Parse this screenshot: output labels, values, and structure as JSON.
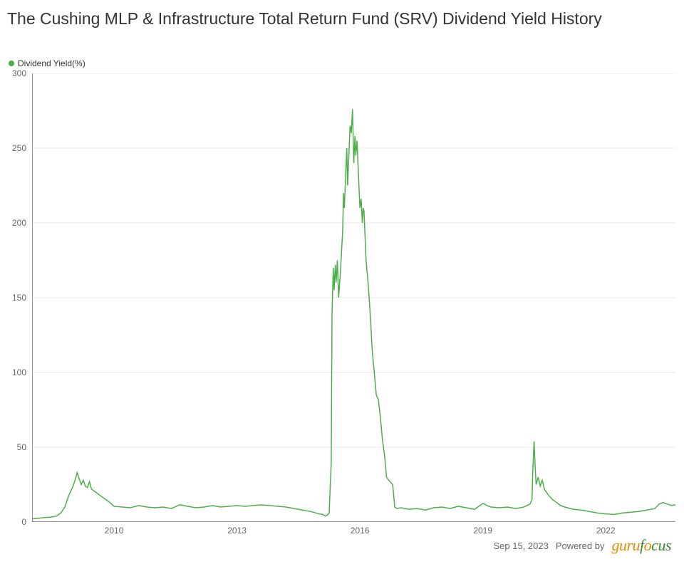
{
  "chart": {
    "type": "line",
    "title": "The Cushing MLP & Infrastructure Total Return Fund (SRV) Dividend Yield History",
    "legend_label": "Dividend Yield(%)",
    "series_color": "#4daf4a",
    "background_color": "#ffffff",
    "grid_color": "#e9e9e9",
    "axis_color": "#333333",
    "label_color": "#666666",
    "title_color": "#333333",
    "title_fontsize": 23,
    "label_fontsize": 12,
    "line_width": 1.5,
    "x_domain": [
      2008,
      2023.7
    ],
    "y_domain": [
      0,
      300
    ],
    "y_ticks": [
      0,
      50,
      100,
      150,
      200,
      250,
      300
    ],
    "x_ticks": [
      2010,
      2013,
      2016,
      2019,
      2022
    ],
    "data": [
      [
        2008.0,
        2.0
      ],
      [
        2008.15,
        2.5
      ],
      [
        2008.3,
        3.0
      ],
      [
        2008.45,
        3.2
      ],
      [
        2008.6,
        4.0
      ],
      [
        2008.7,
        6.0
      ],
      [
        2008.8,
        10.0
      ],
      [
        2008.9,
        18.0
      ],
      [
        2009.0,
        24.0
      ],
      [
        2009.05,
        28.0
      ],
      [
        2009.1,
        33.0
      ],
      [
        2009.15,
        29.0
      ],
      [
        2009.2,
        25.0
      ],
      [
        2009.25,
        28.0
      ],
      [
        2009.3,
        24.0
      ],
      [
        2009.35,
        23.0
      ],
      [
        2009.4,
        27.0
      ],
      [
        2009.45,
        22.0
      ],
      [
        2009.5,
        21.0
      ],
      [
        2009.6,
        19.0
      ],
      [
        2009.7,
        17.0
      ],
      [
        2009.8,
        15.0
      ],
      [
        2009.9,
        13.0
      ],
      [
        2010.0,
        10.5
      ],
      [
        2010.2,
        10.0
      ],
      [
        2010.4,
        9.5
      ],
      [
        2010.6,
        11.0
      ],
      [
        2010.8,
        10.0
      ],
      [
        2011.0,
        9.5
      ],
      [
        2011.2,
        10.0
      ],
      [
        2011.4,
        9.0
      ],
      [
        2011.6,
        11.5
      ],
      [
        2011.8,
        10.5
      ],
      [
        2012.0,
        9.5
      ],
      [
        2012.2,
        10.0
      ],
      [
        2012.4,
        11.0
      ],
      [
        2012.6,
        10.0
      ],
      [
        2012.8,
        10.5
      ],
      [
        2013.0,
        11.0
      ],
      [
        2013.2,
        10.5
      ],
      [
        2013.4,
        11.0
      ],
      [
        2013.6,
        11.5
      ],
      [
        2013.8,
        11.0
      ],
      [
        2014.0,
        10.5
      ],
      [
        2014.2,
        10.0
      ],
      [
        2014.4,
        9.0
      ],
      [
        2014.6,
        8.0
      ],
      [
        2014.8,
        7.0
      ],
      [
        2015.0,
        5.5
      ],
      [
        2015.1,
        5.0
      ],
      [
        2015.15,
        4.0
      ],
      [
        2015.2,
        4.5
      ],
      [
        2015.25,
        6.0
      ],
      [
        2015.3,
        40.0
      ],
      [
        2015.32,
        140.0
      ],
      [
        2015.35,
        170.0
      ],
      [
        2015.37,
        155.0
      ],
      [
        2015.4,
        172.0
      ],
      [
        2015.42,
        160.0
      ],
      [
        2015.45,
        175.0
      ],
      [
        2015.48,
        150.0
      ],
      [
        2015.5,
        158.0
      ],
      [
        2015.52,
        165.0
      ],
      [
        2015.55,
        180.0
      ],
      [
        2015.58,
        195.0
      ],
      [
        2015.6,
        220.0
      ],
      [
        2015.62,
        210.0
      ],
      [
        2015.65,
        230.0
      ],
      [
        2015.68,
        250.0
      ],
      [
        2015.7,
        225.0
      ],
      [
        2015.73,
        245.0
      ],
      [
        2015.76,
        265.0
      ],
      [
        2015.79,
        260.0
      ],
      [
        2015.82,
        276.0
      ],
      [
        2015.85,
        240.0
      ],
      [
        2015.88,
        258.0
      ],
      [
        2015.9,
        245.0
      ],
      [
        2015.93,
        255.0
      ],
      [
        2015.96,
        235.0
      ],
      [
        2016.0,
        210.0
      ],
      [
        2016.03,
        216.0
      ],
      [
        2016.06,
        200.0
      ],
      [
        2016.08,
        210.0
      ],
      [
        2016.1,
        208.0
      ],
      [
        2016.15,
        175.0
      ],
      [
        2016.2,
        160.0
      ],
      [
        2016.25,
        140.0
      ],
      [
        2016.3,
        115.0
      ],
      [
        2016.35,
        100.0
      ],
      [
        2016.4,
        85.0
      ],
      [
        2016.45,
        82.0
      ],
      [
        2016.5,
        70.0
      ],
      [
        2016.55,
        55.0
      ],
      [
        2016.6,
        45.0
      ],
      [
        2016.65,
        30.0
      ],
      [
        2016.7,
        28.0
      ],
      [
        2016.8,
        25.0
      ],
      [
        2016.85,
        10.0
      ],
      [
        2016.9,
        9.0
      ],
      [
        2017.0,
        9.5
      ],
      [
        2017.2,
        8.5
      ],
      [
        2017.4,
        9.0
      ],
      [
        2017.6,
        8.0
      ],
      [
        2017.8,
        9.5
      ],
      [
        2018.0,
        10.0
      ],
      [
        2018.2,
        9.0
      ],
      [
        2018.4,
        10.5
      ],
      [
        2018.6,
        9.5
      ],
      [
        2018.8,
        8.5
      ],
      [
        2019.0,
        12.5
      ],
      [
        2019.1,
        11.0
      ],
      [
        2019.2,
        10.0
      ],
      [
        2019.4,
        9.5
      ],
      [
        2019.6,
        10.0
      ],
      [
        2019.8,
        9.0
      ],
      [
        2020.0,
        10.0
      ],
      [
        2020.15,
        12.0
      ],
      [
        2020.2,
        15.0
      ],
      [
        2020.22,
        35.0
      ],
      [
        2020.25,
        54.0
      ],
      [
        2020.28,
        35.0
      ],
      [
        2020.3,
        25.0
      ],
      [
        2020.35,
        30.0
      ],
      [
        2020.4,
        24.0
      ],
      [
        2020.45,
        28.0
      ],
      [
        2020.5,
        22.0
      ],
      [
        2020.6,
        18.0
      ],
      [
        2020.7,
        15.0
      ],
      [
        2020.8,
        13.0
      ],
      [
        2020.9,
        11.0
      ],
      [
        2021.0,
        10.0
      ],
      [
        2021.2,
        8.5
      ],
      [
        2021.4,
        8.0
      ],
      [
        2021.6,
        7.0
      ],
      [
        2021.8,
        6.0
      ],
      [
        2022.0,
        5.5
      ],
      [
        2022.2,
        5.0
      ],
      [
        2022.4,
        6.0
      ],
      [
        2022.6,
        6.5
      ],
      [
        2022.8,
        7.0
      ],
      [
        2023.0,
        8.0
      ],
      [
        2023.2,
        9.0
      ],
      [
        2023.3,
        12.0
      ],
      [
        2023.4,
        13.0
      ],
      [
        2023.5,
        12.0
      ],
      [
        2023.6,
        11.0
      ],
      [
        2023.7,
        11.5
      ]
    ]
  },
  "footer": {
    "date": "Sep 15, 2023",
    "powered_by": "Powered by"
  }
}
